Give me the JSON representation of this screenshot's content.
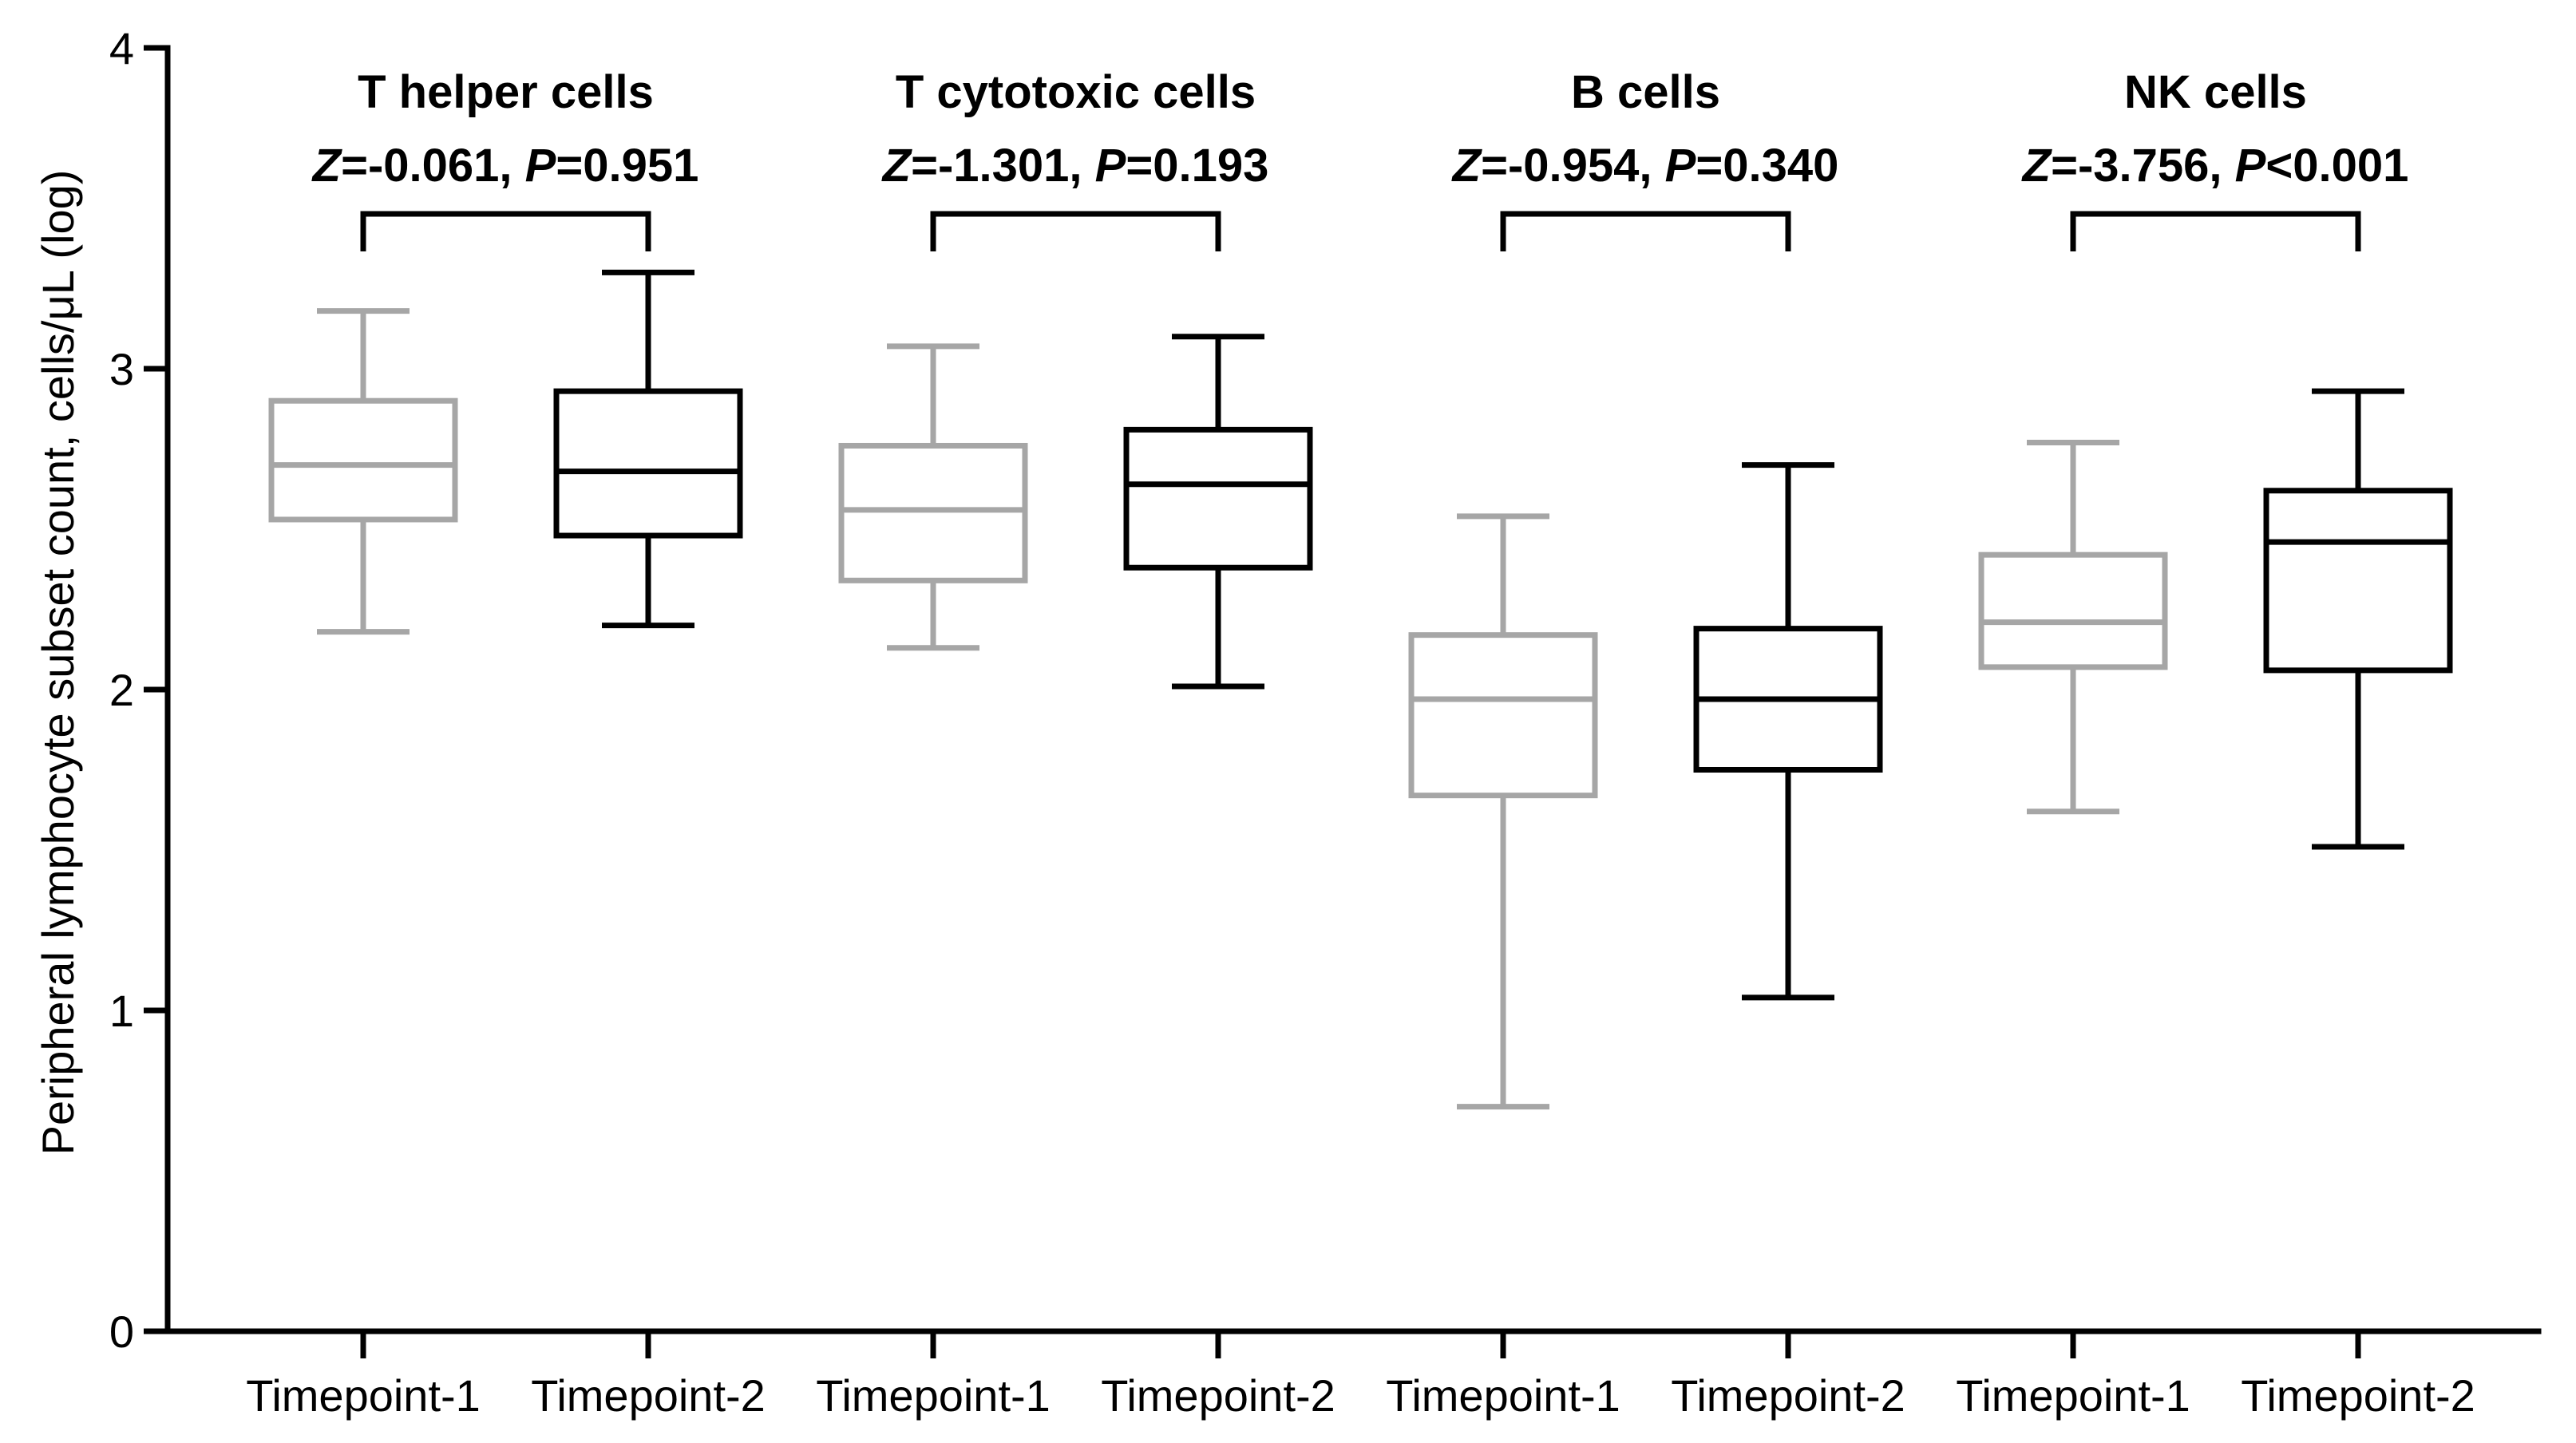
{
  "chart_data": {
    "type": "box",
    "ylabel": "Peripheral lymphocyte subset count, cells/μL (log)",
    "xlabel": "",
    "ylim": [
      0,
      4
    ],
    "yticks": [
      0,
      1,
      2,
      3,
      4
    ],
    "grid": false,
    "groups": [
      {
        "title": "T helper cells",
        "stat": {
          "z_label": "Z",
          "z_value": "=-0.061",
          "sep": ", ",
          "p_label": "P",
          "p_value": "=0.951"
        },
        "boxes": [
          {
            "label": "Timepoint-1",
            "color": "#a6a6a6",
            "min": 2.18,
            "q1": 2.53,
            "median": 2.7,
            "q3": 2.9,
            "max": 3.18
          },
          {
            "label": "Timepoint-2",
            "color": "#000000",
            "min": 2.2,
            "q1": 2.48,
            "median": 2.68,
            "q3": 2.93,
            "max": 3.3
          }
        ]
      },
      {
        "title": "T cytotoxic cells",
        "stat": {
          "z_label": "Z",
          "z_value": "=-1.301",
          "sep": ", ",
          "p_label": "P",
          "p_value": "=0.193"
        },
        "boxes": [
          {
            "label": "Timepoint-1",
            "color": "#a6a6a6",
            "min": 2.13,
            "q1": 2.34,
            "median": 2.56,
            "q3": 2.76,
            "max": 3.07
          },
          {
            "label": "Timepoint-2",
            "color": "#000000",
            "min": 2.01,
            "q1": 2.38,
            "median": 2.64,
            "q3": 2.81,
            "max": 3.1
          }
        ]
      },
      {
        "title": "B cells",
        "stat": {
          "z_label": "Z",
          "z_value": "=-0.954",
          "sep": ", ",
          "p_label": "P",
          "p_value": "=0.340"
        },
        "boxes": [
          {
            "label": "Timepoint-1",
            "color": "#a6a6a6",
            "min": 0.7,
            "q1": 1.67,
            "median": 1.97,
            "q3": 2.17,
            "max": 2.54
          },
          {
            "label": "Timepoint-2",
            "color": "#000000",
            "min": 1.04,
            "q1": 1.75,
            "median": 1.97,
            "q3": 2.19,
            "max": 2.7
          }
        ]
      },
      {
        "title": "NK cells",
        "stat": {
          "z_label": "Z",
          "z_value": "=-3.756",
          "sep": ", ",
          "p_label": "P",
          "p_value": "<0.001"
        },
        "boxes": [
          {
            "label": "Timepoint-1",
            "color": "#a6a6a6",
            "min": 1.62,
            "q1": 2.07,
            "median": 2.21,
            "q3": 2.42,
            "max": 2.77
          },
          {
            "label": "Timepoint-2",
            "color": "#000000",
            "min": 1.51,
            "q1": 2.06,
            "median": 2.46,
            "q3": 2.62,
            "max": 2.93
          }
        ]
      }
    ]
  }
}
